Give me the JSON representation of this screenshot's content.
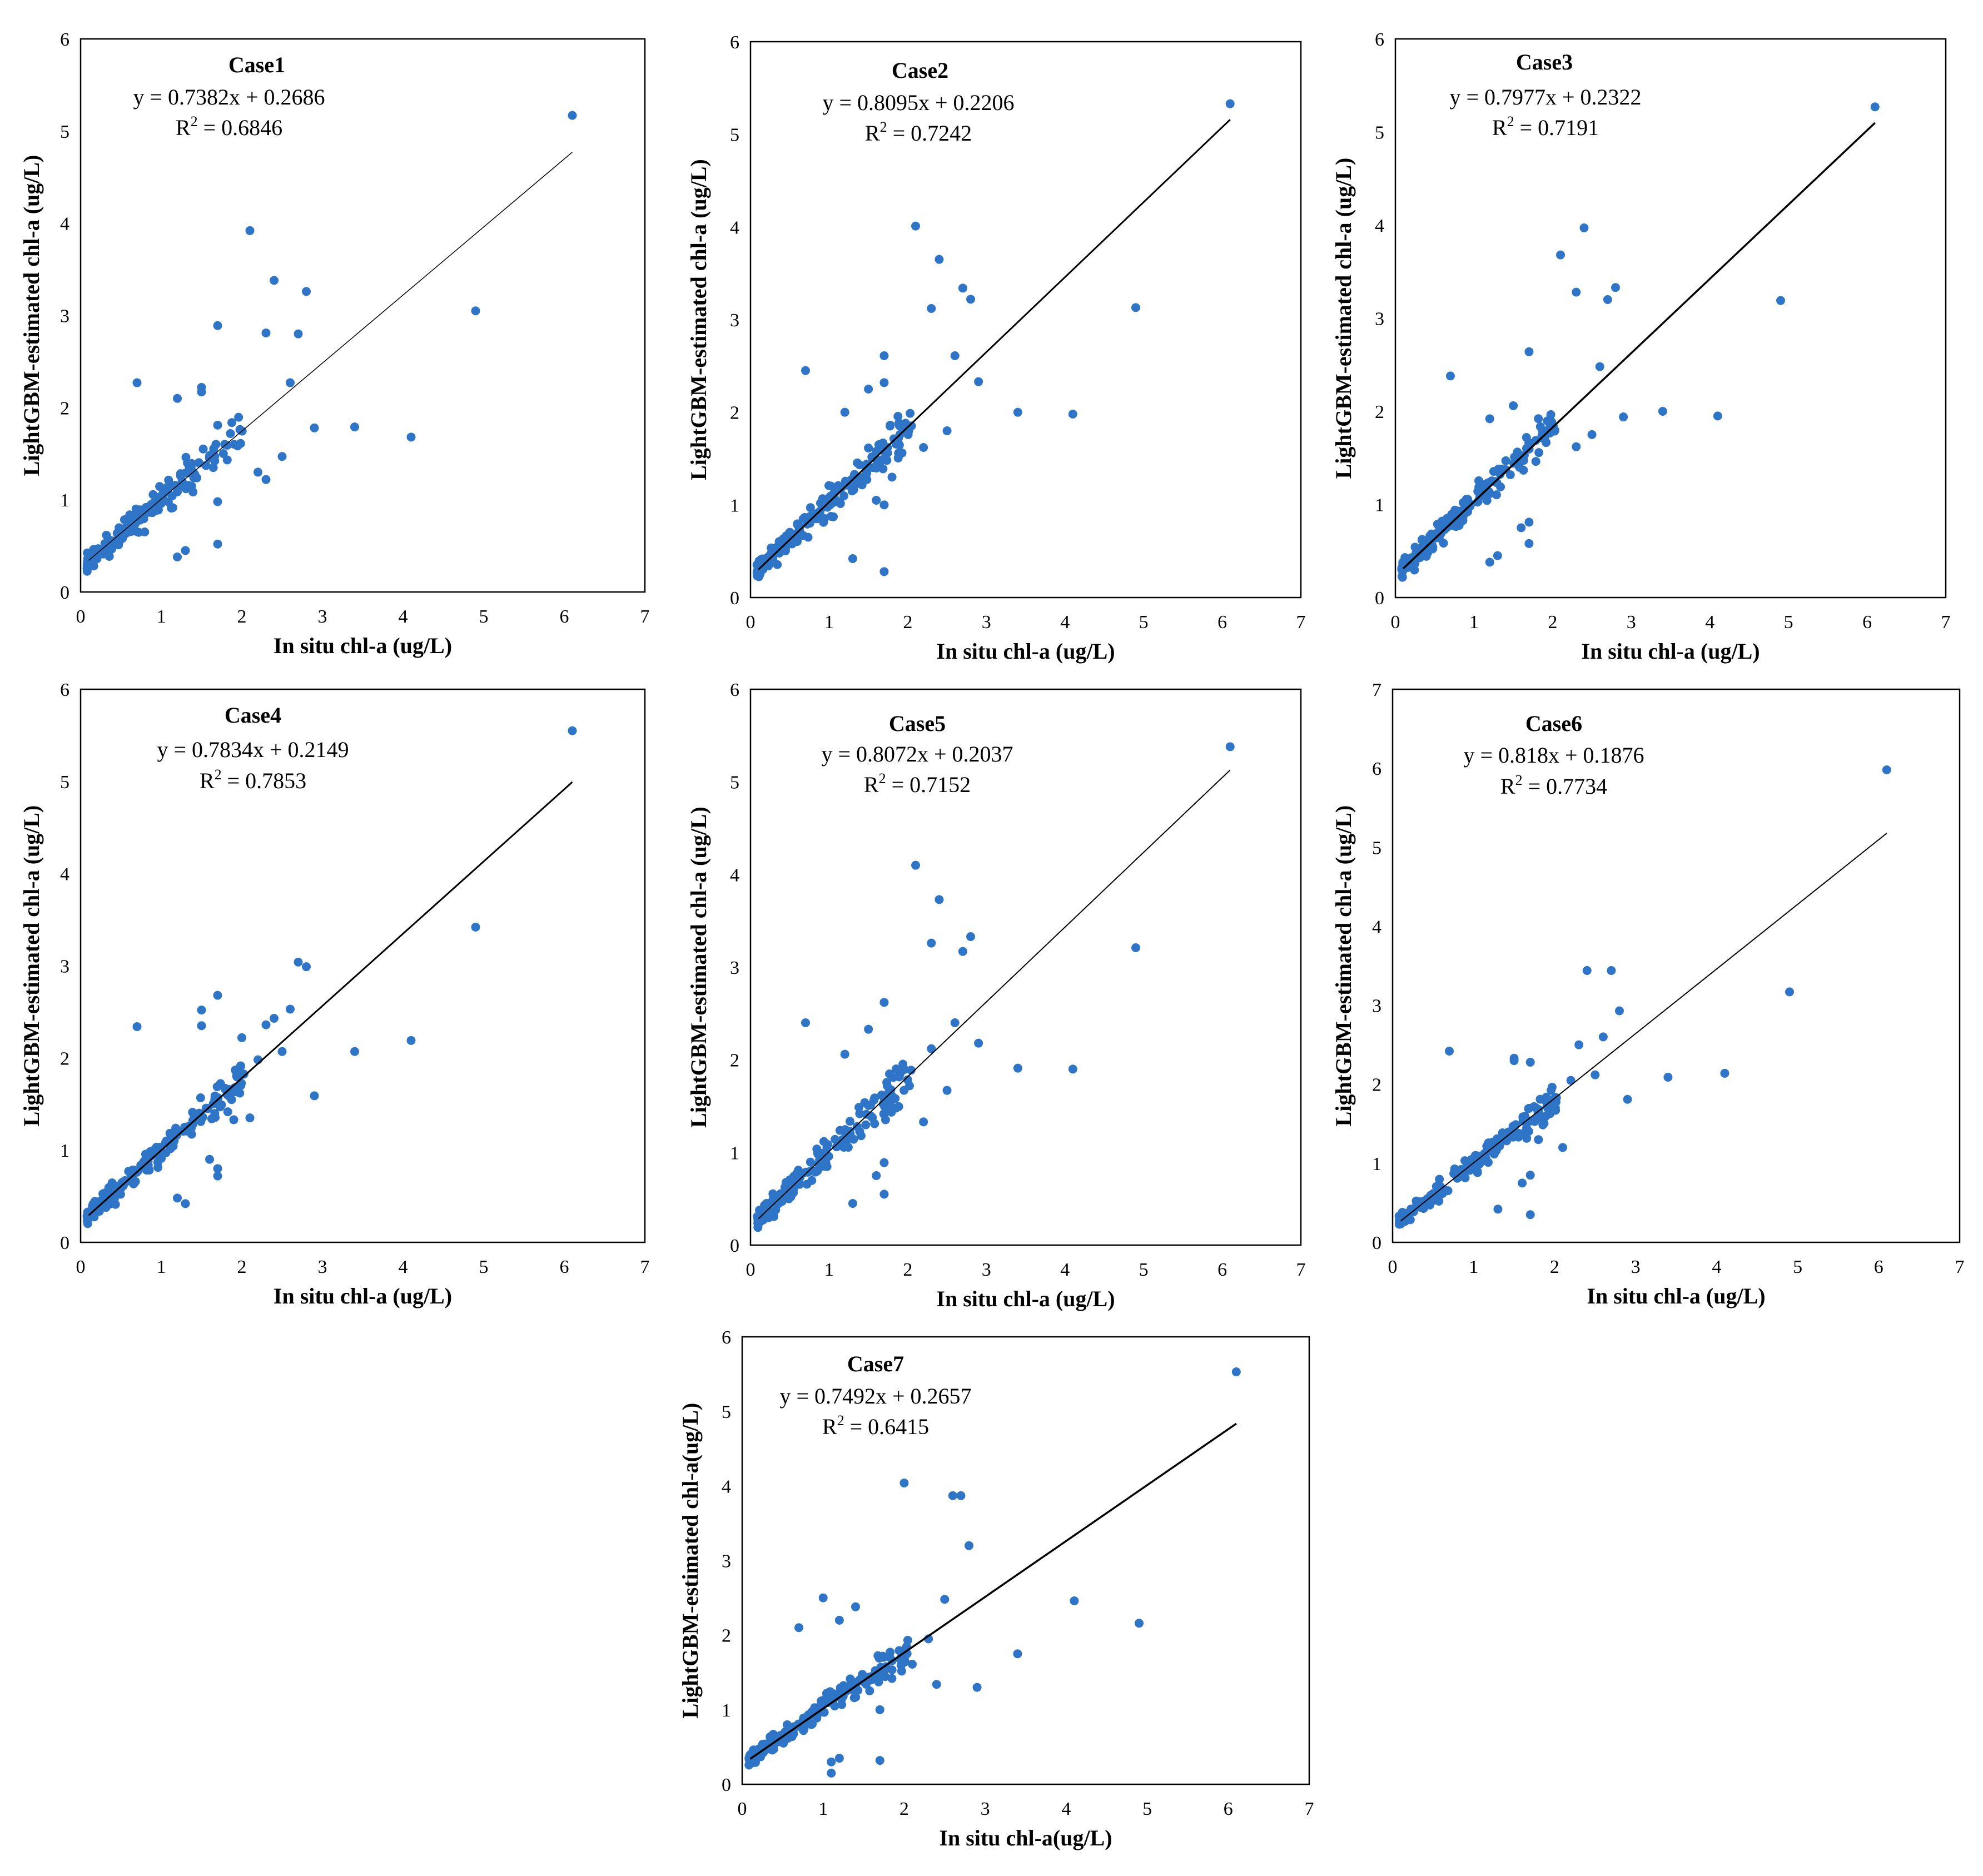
{
  "chart_data": [
    {
      "type": "scatter",
      "title": "Case1",
      "equation": "y = 0.7382x + 0.2686",
      "r2_label": "R",
      "r2_value": " = 0.6846",
      "xlabel": "In situ chl-a (ug/L)",
      "ylabel": "LightGBM-estimated chl-a (ug/L)",
      "xlim": [
        0,
        7
      ],
      "ylim": [
        0,
        6
      ],
      "x_ticks": [
        "0",
        "1",
        "2",
        "3",
        "4",
        "5",
        "6",
        "7"
      ],
      "y_ticks": [
        "0",
        "1",
        "2",
        "3",
        "4",
        "5",
        "6"
      ],
      "trendline": {
        "slope": 0.7382,
        "intercept": 0.2686,
        "x_range": [
          0.1,
          6.1
        ]
      },
      "highlights": [
        [
          6.1,
          5.17
        ],
        [
          2.1,
          3.92
        ],
        [
          2.4,
          3.38
        ],
        [
          2.8,
          3.26
        ],
        [
          1.7,
          2.89
        ],
        [
          2.3,
          2.81
        ],
        [
          2.7,
          2.8
        ],
        [
          2.6,
          2.27
        ],
        [
          4.9,
          3.05
        ],
        [
          0.7,
          2.27
        ],
        [
          1.5,
          2.22
        ],
        [
          1.5,
          2.17
        ],
        [
          1.2,
          2.1
        ],
        [
          1.7,
          1.81
        ],
        [
          2.9,
          1.78
        ],
        [
          3.4,
          1.79
        ],
        [
          4.1,
          1.68
        ],
        [
          2.5,
          1.47
        ],
        [
          2.2,
          1.3
        ],
        [
          2.3,
          1.22
        ],
        [
          1.7,
          0.98
        ],
        [
          1.3,
          0.45
        ],
        [
          1.2,
          0.38
        ],
        [
          1.7,
          0.52
        ]
      ],
      "cluster": {
        "count": 175,
        "seed": 11,
        "x_min": 0.08,
        "x_max": 2.05,
        "slope": 0.7382,
        "intercept": 0.2686,
        "noise": 0.2
      }
    },
    {
      "type": "scatter",
      "title": "Case2",
      "equation": "y = 0.8095x + 0.2206",
      "r2_label": "R",
      "r2_value": " = 0.7242",
      "xlabel": "In situ chl-a (ug/L)",
      "ylabel": "LightGBM-estimated chl-a (ug/L)",
      "xlim": [
        0,
        7
      ],
      "ylim": [
        0,
        6
      ],
      "x_ticks": [
        "0",
        "1",
        "2",
        "3",
        "4",
        "5",
        "6",
        "7"
      ],
      "y_ticks": [
        "0",
        "1",
        "2",
        "3",
        "4",
        "5",
        "6"
      ],
      "trendline": {
        "slope": 0.8095,
        "intercept": 0.2206,
        "x_range": [
          0.1,
          6.1
        ]
      },
      "highlights": [
        [
          6.1,
          5.33
        ],
        [
          2.1,
          4.01
        ],
        [
          2.4,
          3.65
        ],
        [
          2.7,
          3.34
        ],
        [
          2.8,
          3.22
        ],
        [
          2.3,
          3.12
        ],
        [
          4.9,
          3.13
        ],
        [
          0.7,
          2.45
        ],
        [
          1.7,
          2.61
        ],
        [
          2.6,
          2.61
        ],
        [
          1.7,
          2.32
        ],
        [
          2.9,
          2.33
        ],
        [
          1.5,
          2.25
        ],
        [
          1.2,
          2.0
        ],
        [
          3.4,
          2.0
        ],
        [
          4.1,
          1.98
        ],
        [
          2.5,
          1.8
        ],
        [
          2.2,
          1.62
        ],
        [
          1.8,
          1.3
        ],
        [
          1.6,
          1.05
        ],
        [
          1.7,
          1.0
        ],
        [
          1.3,
          0.42
        ],
        [
          1.7,
          0.28
        ]
      ],
      "cluster": {
        "count": 175,
        "seed": 23,
        "x_min": 0.08,
        "x_max": 2.05,
        "slope": 0.8095,
        "intercept": 0.2206,
        "noise": 0.2
      }
    },
    {
      "type": "scatter",
      "title": "Case3",
      "equation": "y = 0.7977x + 0.2322",
      "r2_label": "R",
      "r2_value": " = 0.7191",
      "xlabel": "In situ chl-a (ug/L)",
      "ylabel": "LightGBM-estimated chl-a (ug/L)",
      "xlim": [
        0,
        7
      ],
      "ylim": [
        0,
        6
      ],
      "x_ticks": [
        "0",
        "1",
        "2",
        "3",
        "4",
        "5",
        "6",
        "7"
      ],
      "y_ticks": [
        "0",
        "1",
        "2",
        "3",
        "4",
        "5",
        "6"
      ],
      "trendline": {
        "slope": 0.7977,
        "intercept": 0.2322,
        "x_range": [
          0.1,
          6.1
        ]
      },
      "highlights": [
        [
          6.1,
          5.27
        ],
        [
          2.4,
          3.97
        ],
        [
          2.1,
          3.68
        ],
        [
          2.8,
          3.33
        ],
        [
          2.3,
          3.28
        ],
        [
          2.7,
          3.2
        ],
        [
          4.9,
          3.19
        ],
        [
          1.7,
          2.64
        ],
        [
          2.6,
          2.48
        ],
        [
          0.7,
          2.38
        ],
        [
          1.5,
          2.06
        ],
        [
          3.4,
          2.0
        ],
        [
          2.9,
          1.94
        ],
        [
          4.1,
          1.95
        ],
        [
          1.2,
          1.92
        ],
        [
          2.5,
          1.75
        ],
        [
          2.3,
          1.62
        ],
        [
          1.7,
          0.81
        ],
        [
          1.6,
          0.75
        ],
        [
          1.3,
          0.45
        ],
        [
          1.2,
          0.38
        ],
        [
          1.7,
          0.58
        ]
      ],
      "cluster": {
        "count": 175,
        "seed": 37,
        "x_min": 0.08,
        "x_max": 2.05,
        "slope": 0.7977,
        "intercept": 0.2322,
        "noise": 0.2
      }
    },
    {
      "type": "scatter",
      "title": "Case4",
      "equation": "y = 0.7834x + 0.2149",
      "r2_label": "R",
      "r2_value": " = 0.7853",
      "xlabel": "In situ chl-a (ug/L)",
      "ylabel": "LightGBM-estimated chl-a (ug/L)",
      "xlim": [
        0,
        7
      ],
      "ylim": [
        0,
        6
      ],
      "x_ticks": [
        "0",
        "1",
        "2",
        "3",
        "4",
        "5",
        "6",
        "7"
      ],
      "y_ticks": [
        "0",
        "1",
        "2",
        "3",
        "4",
        "5",
        "6"
      ],
      "trendline": {
        "slope": 0.7834,
        "intercept": 0.2149,
        "x_range": [
          0.1,
          6.1
        ]
      },
      "highlights": [
        [
          6.1,
          5.55
        ],
        [
          4.9,
          3.42
        ],
        [
          2.7,
          3.04
        ],
        [
          2.8,
          2.99
        ],
        [
          1.7,
          2.68
        ],
        [
          2.6,
          2.53
        ],
        [
          2.4,
          2.43
        ],
        [
          2.3,
          2.36
        ],
        [
          1.5,
          2.52
        ],
        [
          1.5,
          2.35
        ],
        [
          0.7,
          2.34
        ],
        [
          2.0,
          2.22
        ],
        [
          4.1,
          2.19
        ],
        [
          3.4,
          2.07
        ],
        [
          2.5,
          2.07
        ],
        [
          2.2,
          1.98
        ],
        [
          2.9,
          1.59
        ],
        [
          2.1,
          1.35
        ],
        [
          1.9,
          1.33
        ],
        [
          1.6,
          0.9
        ],
        [
          1.7,
          0.72
        ],
        [
          1.7,
          0.8
        ],
        [
          1.2,
          0.48
        ],
        [
          1.3,
          0.42
        ]
      ],
      "cluster": {
        "count": 175,
        "seed": 41,
        "x_min": 0.08,
        "x_max": 2.05,
        "slope": 0.7834,
        "intercept": 0.2149,
        "noise": 0.18
      }
    },
    {
      "type": "scatter",
      "title": "Case5",
      "equation": "y = 0.8072x + 0.2037",
      "r2_label": "R",
      "r2_value": " = 0.7152",
      "xlabel": "In situ chl-a (ug/L)",
      "ylabel": "LightGBM-estimated chl-a (ug/L)",
      "xlim": [
        0,
        7
      ],
      "ylim": [
        0,
        6
      ],
      "x_ticks": [
        "0",
        "1",
        "2",
        "3",
        "4",
        "5",
        "6",
        "7"
      ],
      "y_ticks": [
        "0",
        "1",
        "2",
        "3",
        "4",
        "5",
        "6"
      ],
      "trendline": {
        "slope": 0.8072,
        "intercept": 0.2037,
        "x_range": [
          0.1,
          6.1
        ]
      },
      "highlights": [
        [
          6.1,
          5.38
        ],
        [
          2.1,
          4.1
        ],
        [
          2.4,
          3.73
        ],
        [
          2.8,
          3.33
        ],
        [
          2.3,
          3.26
        ],
        [
          2.7,
          3.17
        ],
        [
          4.9,
          3.21
        ],
        [
          1.7,
          2.62
        ],
        [
          0.7,
          2.4
        ],
        [
          2.6,
          2.4
        ],
        [
          1.5,
          2.33
        ],
        [
          2.9,
          2.18
        ],
        [
          2.3,
          2.12
        ],
        [
          1.2,
          2.06
        ],
        [
          3.4,
          1.91
        ],
        [
          4.1,
          1.9
        ],
        [
          2.5,
          1.67
        ],
        [
          2.2,
          1.33
        ],
        [
          1.7,
          0.89
        ],
        [
          1.6,
          0.75
        ],
        [
          1.7,
          0.55
        ],
        [
          1.3,
          0.45
        ]
      ],
      "cluster": {
        "count": 175,
        "seed": 53,
        "x_min": 0.08,
        "x_max": 2.05,
        "slope": 0.8072,
        "intercept": 0.2037,
        "noise": 0.2
      }
    },
    {
      "type": "scatter",
      "title": "Case6",
      "equation": "y = 0.818x + 0.1876",
      "r2_label": "R",
      "r2_value": " = 0.7734",
      "xlabel": "In situ chl-a (ug/L)",
      "ylabel": "LightGBM-estimated chl-a (ug/L)",
      "xlim": [
        0,
        7
      ],
      "ylim": [
        0,
        7
      ],
      "x_ticks": [
        "0",
        "1",
        "2",
        "3",
        "4",
        "5",
        "6",
        "7"
      ],
      "y_ticks": [
        "0",
        "1",
        "2",
        "3",
        "4",
        "5",
        "6",
        "7"
      ],
      "trendline": {
        "slope": 0.818,
        "intercept": 0.1876,
        "x_range": [
          0.1,
          6.1
        ]
      },
      "highlights": [
        [
          6.1,
          5.98
        ],
        [
          2.4,
          3.44
        ],
        [
          2.7,
          3.44
        ],
        [
          4.9,
          3.17
        ],
        [
          2.8,
          2.93
        ],
        [
          2.6,
          2.6
        ],
        [
          2.3,
          2.5
        ],
        [
          0.7,
          2.42
        ],
        [
          1.5,
          2.33
        ],
        [
          1.5,
          2.3
        ],
        [
          1.7,
          2.28
        ],
        [
          4.1,
          2.14
        ],
        [
          3.4,
          2.09
        ],
        [
          2.5,
          2.12
        ],
        [
          2.2,
          2.05
        ],
        [
          2.9,
          1.81
        ],
        [
          1.8,
          1.3
        ],
        [
          2.1,
          1.2
        ],
        [
          1.7,
          0.85
        ],
        [
          1.6,
          0.75
        ],
        [
          1.3,
          0.42
        ],
        [
          1.7,
          0.35
        ]
      ],
      "cluster": {
        "count": 175,
        "seed": 67,
        "x_min": 0.08,
        "x_max": 2.05,
        "slope": 0.818,
        "intercept": 0.1876,
        "noise": 0.18
      }
    },
    {
      "type": "scatter",
      "title": "Case7",
      "equation": "y = 0.7492x + 0.2657",
      "r2_label": "R",
      "r2_value": " = 0.6415",
      "xlabel": "In situ chl-a(ug/L)",
      "ylabel": "LightGBM-estimated chl-a(ug/L)",
      "xlim": [
        0,
        7
      ],
      "ylim": [
        0,
        6
      ],
      "x_ticks": [
        "0",
        "1",
        "2",
        "3",
        "4",
        "5",
        "6",
        "7"
      ],
      "y_ticks": [
        "0",
        "1",
        "2",
        "3",
        "4",
        "5",
        "6"
      ],
      "trendline": {
        "slope": 0.7492,
        "intercept": 0.2657,
        "x_range": [
          0.1,
          6.1
        ]
      },
      "highlights": [
        [
          6.1,
          5.53
        ],
        [
          2.0,
          4.04
        ],
        [
          2.6,
          3.87
        ],
        [
          2.7,
          3.87
        ],
        [
          2.8,
          3.2
        ],
        [
          1.0,
          2.5
        ],
        [
          2.5,
          2.48
        ],
        [
          4.1,
          2.46
        ],
        [
          1.4,
          2.38
        ],
        [
          1.2,
          2.2
        ],
        [
          4.9,
          2.16
        ],
        [
          0.7,
          2.1
        ],
        [
          2.3,
          1.95
        ],
        [
          3.4,
          1.75
        ],
        [
          2.1,
          1.61
        ],
        [
          2.4,
          1.34
        ],
        [
          2.9,
          1.3
        ],
        [
          1.7,
          1.0
        ],
        [
          1.7,
          0.32
        ],
        [
          1.2,
          0.35
        ],
        [
          1.1,
          0.3
        ],
        [
          1.1,
          0.15
        ]
      ],
      "cluster": {
        "count": 175,
        "seed": 79,
        "x_min": 0.08,
        "x_max": 2.05,
        "slope": 0.7492,
        "intercept": 0.2657,
        "noise": 0.2
      }
    }
  ]
}
